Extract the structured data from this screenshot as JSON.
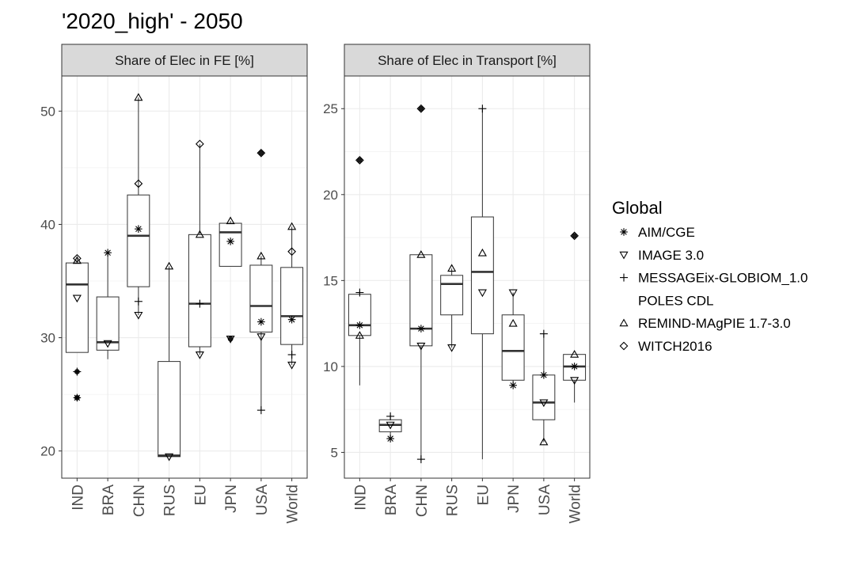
{
  "title": "'2020_high' - 2050",
  "legend": {
    "title": "Global",
    "items": [
      {
        "label": "AIM/CGE",
        "shape": "asterisk"
      },
      {
        "label": "IMAGE 3.0",
        "shape": "triangle-down"
      },
      {
        "label": "MESSAGEix-GLOBIOM_1.0",
        "shape": "plus"
      },
      {
        "label": "POLES CDL",
        "shape": "none"
      },
      {
        "label": "REMIND-MAgPIE 1.7-3.0",
        "shape": "triangle-up"
      },
      {
        "label": "WITCH2016",
        "shape": "diamond"
      }
    ]
  },
  "chart_data": [
    {
      "type": "box",
      "panel": "Share of Elec in FE [%]",
      "categories": [
        "IND",
        "BRA",
        "CHN",
        "RUS",
        "EU",
        "JPN",
        "USA",
        "World"
      ],
      "yticks": [
        20,
        30,
        40,
        50
      ],
      "ylim": [
        17.6,
        53.1
      ],
      "grid": true,
      "boxes": [
        {
          "q1": 28.7,
          "median": 34.7,
          "q3": 36.6,
          "whisker_low": 28.7,
          "whisker_high": 37.0,
          "outliers": [
            24.7,
            27.0
          ]
        },
        {
          "q1": 28.9,
          "median": 29.6,
          "q3": 33.6,
          "whisker_low": 28.1,
          "whisker_high": 37.5,
          "outliers": []
        },
        {
          "q1": 34.5,
          "median": 39.0,
          "q3": 42.6,
          "whisker_low": 32.0,
          "whisker_high": 51.2,
          "outliers": []
        },
        {
          "q1": 19.5,
          "median": 19.6,
          "q3": 27.9,
          "whisker_low": 19.5,
          "whisker_high": 36.3,
          "outliers": []
        },
        {
          "q1": 29.2,
          "median": 33.0,
          "q3": 39.1,
          "whisker_low": 28.5,
          "whisker_high": 47.1,
          "outliers": []
        },
        {
          "q1": 36.3,
          "median": 39.3,
          "q3": 40.1,
          "whisker_low": 36.3,
          "whisker_high": 40.3,
          "outliers": [
            29.9
          ]
        },
        {
          "q1": 30.5,
          "median": 32.8,
          "q3": 36.4,
          "whisker_low": 23.6,
          "whisker_high": 37.2,
          "outliers": [
            46.3
          ]
        },
        {
          "q1": 29.4,
          "median": 31.9,
          "q3": 36.2,
          "whisker_low": 27.6,
          "whisker_high": 39.8,
          "outliers": []
        }
      ],
      "points": [
        {
          "cat": "IND",
          "model": "AIM/CGE",
          "y": 24.7
        },
        {
          "cat": "IND",
          "model": "IMAGE 3.0",
          "y": 33.5
        },
        {
          "cat": "IND",
          "model": "MESSAGEix-GLOBIOM_1.0",
          "y": 27.0
        },
        {
          "cat": "IND",
          "model": "REMIND-MAgPIE 1.7-3.0",
          "y": 36.8
        },
        {
          "cat": "IND",
          "model": "WITCH2016",
          "y": 37.0
        },
        {
          "cat": "BRA",
          "model": "AIM/CGE",
          "y": 37.5
        },
        {
          "cat": "BRA",
          "model": "IMAGE 3.0",
          "y": 29.5
        },
        {
          "cat": "CHN",
          "model": "AIM/CGE",
          "y": 39.6
        },
        {
          "cat": "CHN",
          "model": "IMAGE 3.0",
          "y": 32.0
        },
        {
          "cat": "CHN",
          "model": "MESSAGEix-GLOBIOM_1.0",
          "y": 33.2
        },
        {
          "cat": "CHN",
          "model": "REMIND-MAgPIE 1.7-3.0",
          "y": 51.2
        },
        {
          "cat": "CHN",
          "model": "WITCH2016",
          "y": 43.6
        },
        {
          "cat": "RUS",
          "model": "IMAGE 3.0",
          "y": 19.5
        },
        {
          "cat": "RUS",
          "model": "REMIND-MAgPIE 1.7-3.0",
          "y": 36.3
        },
        {
          "cat": "EU",
          "model": "IMAGE 3.0",
          "y": 28.5
        },
        {
          "cat": "EU",
          "model": "MESSAGEix-GLOBIOM_1.0",
          "y": 33.0
        },
        {
          "cat": "EU",
          "model": "REMIND-MAgPIE 1.7-3.0",
          "y": 39.1
        },
        {
          "cat": "EU",
          "model": "WITCH2016",
          "y": 47.1
        },
        {
          "cat": "JPN",
          "model": "AIM/CGE",
          "y": 38.5
        },
        {
          "cat": "JPN",
          "model": "IMAGE 3.0",
          "y": 29.9
        },
        {
          "cat": "JPN",
          "model": "REMIND-MAgPIE 1.7-3.0",
          "y": 40.3
        },
        {
          "cat": "USA",
          "model": "AIM/CGE",
          "y": 31.4
        },
        {
          "cat": "USA",
          "model": "IMAGE 3.0",
          "y": 30.1
        },
        {
          "cat": "USA",
          "model": "MESSAGEix-GLOBIOM_1.0",
          "y": 23.6
        },
        {
          "cat": "USA",
          "model": "REMIND-MAgPIE 1.7-3.0",
          "y": 37.2
        },
        {
          "cat": "USA",
          "model": "WITCH2016",
          "y": 46.3
        },
        {
          "cat": "World",
          "model": "AIM/CGE",
          "y": 31.6
        },
        {
          "cat": "World",
          "model": "IMAGE 3.0",
          "y": 27.6
        },
        {
          "cat": "World",
          "model": "MESSAGEix-GLOBIOM_1.0",
          "y": 28.5
        },
        {
          "cat": "World",
          "model": "REMIND-MAgPIE 1.7-3.0",
          "y": 39.8
        },
        {
          "cat": "World",
          "model": "WITCH2016",
          "y": 37.6
        }
      ]
    },
    {
      "type": "box",
      "panel": "Share of Elec in Transport [%]",
      "categories": [
        "IND",
        "BRA",
        "CHN",
        "RUS",
        "EU",
        "JPN",
        "USA",
        "World"
      ],
      "yticks": [
        5,
        10,
        15,
        20,
        25
      ],
      "ylim": [
        3.5,
        26.9
      ],
      "grid": true,
      "boxes": [
        {
          "q1": 11.8,
          "median": 12.4,
          "q3": 14.2,
          "whisker_low": 8.9,
          "whisker_high": 14.4,
          "outliers": [
            22.0
          ]
        },
        {
          "q1": 6.2,
          "median": 6.6,
          "q3": 6.9,
          "whisker_low": 5.8,
          "whisker_high": 7.2,
          "outliers": []
        },
        {
          "q1": 11.2,
          "median": 12.2,
          "q3": 16.5,
          "whisker_low": 4.5,
          "whisker_high": 16.5,
          "outliers": [
            25.0
          ]
        },
        {
          "q1": 13.0,
          "median": 14.8,
          "q3": 15.3,
          "whisker_low": 11.1,
          "whisker_high": 15.7,
          "outliers": []
        },
        {
          "q1": 11.9,
          "median": 15.5,
          "q3": 18.7,
          "whisker_low": 4.6,
          "whisker_high": 25.0,
          "outliers": []
        },
        {
          "q1": 9.2,
          "median": 10.9,
          "q3": 13.0,
          "whisker_low": 8.9,
          "whisker_high": 14.3,
          "outliers": []
        },
        {
          "q1": 6.9,
          "median": 7.9,
          "q3": 9.5,
          "whisker_low": 5.6,
          "whisker_high": 11.9,
          "outliers": []
        },
        {
          "q1": 9.2,
          "median": 10.0,
          "q3": 10.7,
          "whisker_low": 7.9,
          "whisker_high": 10.7,
          "outliers": [
            17.6
          ]
        }
      ],
      "points": [
        {
          "cat": "IND",
          "model": "AIM/CGE",
          "y": 12.4
        },
        {
          "cat": "IND",
          "model": "MESSAGEix-GLOBIOM_1.0",
          "y": 14.3
        },
        {
          "cat": "IND",
          "model": "REMIND-MAgPIE 1.7-3.0",
          "y": 11.8
        },
        {
          "cat": "IND",
          "model": "WITCH2016",
          "y": 22.0
        },
        {
          "cat": "BRA",
          "model": "AIM/CGE",
          "y": 5.8
        },
        {
          "cat": "BRA",
          "model": "IMAGE 3.0",
          "y": 6.6
        },
        {
          "cat": "BRA",
          "model": "MESSAGEix-GLOBIOM_1.0",
          "y": 7.1
        },
        {
          "cat": "CHN",
          "model": "AIM/CGE",
          "y": 12.2
        },
        {
          "cat": "CHN",
          "model": "IMAGE 3.0",
          "y": 11.2
        },
        {
          "cat": "CHN",
          "model": "MESSAGEix-GLOBIOM_1.0",
          "y": 4.6
        },
        {
          "cat": "CHN",
          "model": "REMIND-MAgPIE 1.7-3.0",
          "y": 16.5
        },
        {
          "cat": "CHN",
          "model": "WITCH2016",
          "y": 25.0
        },
        {
          "cat": "RUS",
          "model": "IMAGE 3.0",
          "y": 11.1
        },
        {
          "cat": "RUS",
          "model": "REMIND-MAgPIE 1.7-3.0",
          "y": 15.7
        },
        {
          "cat": "EU",
          "model": "IMAGE 3.0",
          "y": 14.3
        },
        {
          "cat": "EU",
          "model": "MESSAGEix-GLOBIOM_1.0",
          "y": 25.0
        },
        {
          "cat": "EU",
          "model": "REMIND-MAgPIE 1.7-3.0",
          "y": 16.6
        },
        {
          "cat": "JPN",
          "model": "AIM/CGE",
          "y": 8.9
        },
        {
          "cat": "JPN",
          "model": "IMAGE 3.0",
          "y": 14.3
        },
        {
          "cat": "JPN",
          "model": "REMIND-MAgPIE 1.7-3.0",
          "y": 12.5
        },
        {
          "cat": "USA",
          "model": "AIM/CGE",
          "y": 9.5
        },
        {
          "cat": "USA",
          "model": "IMAGE 3.0",
          "y": 7.9
        },
        {
          "cat": "USA",
          "model": "MESSAGEix-GLOBIOM_1.0",
          "y": 11.9
        },
        {
          "cat": "USA",
          "model": "REMIND-MAgPIE 1.7-3.0",
          "y": 5.6
        },
        {
          "cat": "World",
          "model": "AIM/CGE",
          "y": 10.0
        },
        {
          "cat": "World",
          "model": "IMAGE 3.0",
          "y": 9.2
        },
        {
          "cat": "World",
          "model": "REMIND-MAgPIE 1.7-3.0",
          "y": 10.7
        },
        {
          "cat": "World",
          "model": "WITCH2016",
          "y": 17.6
        }
      ]
    }
  ]
}
